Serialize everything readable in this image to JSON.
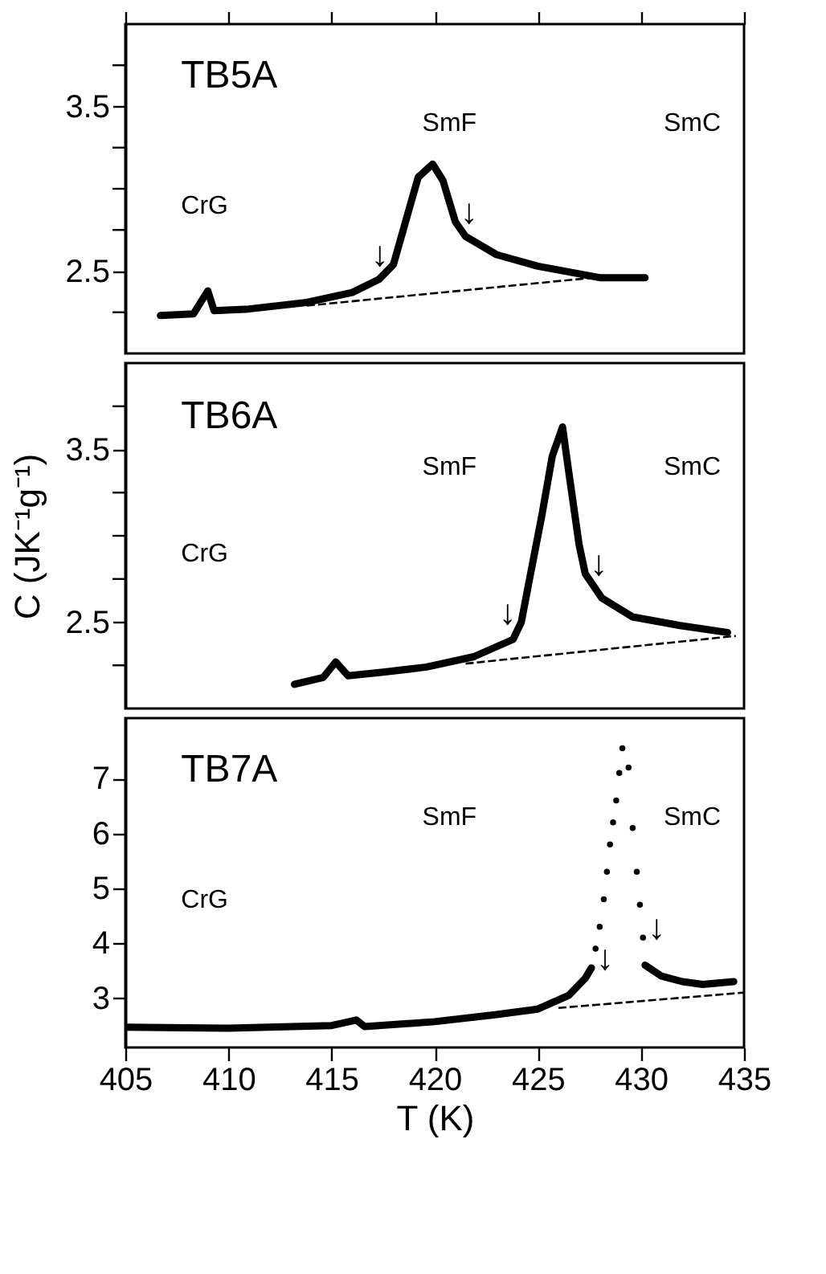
{
  "chart_data": [
    {
      "type": "line",
      "title": "TB5A",
      "xlim": [
        405,
        435
      ],
      "xticks": [
        405,
        410,
        415,
        420,
        425,
        430,
        435
      ],
      "ylim": [
        2.0,
        4.0
      ],
      "yticks": [
        {
          "value": 2.25,
          "label": null
        },
        2.5,
        {
          "value": 2.75,
          "label": null
        },
        {
          "value": 3.0,
          "label": null
        },
        {
          "value": 3.25,
          "label": null
        },
        3.5,
        {
          "value": 3.75,
          "label": null
        }
      ],
      "tick_labels": "y",
      "grid": false,
      "marker": "none",
      "series": [
        {
          "color": "#000000",
          "x": [
            406.7,
            408.3,
            409.0,
            409.3,
            411,
            413.8,
            416,
            417.3,
            418.0,
            418.7,
            419.2,
            419.9,
            420.4,
            421.0,
            421.5,
            423.0,
            425.0,
            428.0,
            430.2
          ],
          "values": [
            2.23,
            2.24,
            2.38,
            2.26,
            2.27,
            2.31,
            2.37,
            2.45,
            2.54,
            2.85,
            3.07,
            3.15,
            3.05,
            2.8,
            2.71,
            2.6,
            2.53,
            2.46,
            2.46
          ]
        },
        {
          "color": "#000000",
          "line_style": "dashed",
          "x": [
            413.8,
            428.5
          ],
          "values": [
            2.29,
            2.47
          ]
        }
      ],
      "annotations": [
        "CrG",
        "SmF",
        "SmC",
        {
          "text": "↓",
          "x": 418.0,
          "y": 2.54
        },
        {
          "text": "↓",
          "x": 421.0,
          "y": 2.8
        }
      ]
    },
    {
      "type": "line",
      "title": "TB6A",
      "ylabel": "C (JK⁻¹g⁻¹)",
      "xlim": [
        405,
        435
      ],
      "ylim": [
        2.0,
        4.0
      ],
      "yticks": [
        {
          "value": 2.25,
          "label": null
        },
        2.5,
        {
          "value": 2.75,
          "label": null
        },
        {
          "value": 3.0,
          "label": null
        },
        {
          "value": 3.25,
          "label": null
        },
        3.5,
        {
          "value": 3.75,
          "label": null
        }
      ],
      "tick_labels": "y",
      "grid": false,
      "marker": "none",
      "series": [
        {
          "color": "#000000",
          "x": [
            413.2,
            414.6,
            415.2,
            415.8,
            417.5,
            419.6,
            421.9,
            423.8,
            424.2,
            424.6,
            425.2,
            425.7,
            426.2,
            426.5,
            427.0,
            427.3,
            428.1,
            429.6,
            431.9,
            434.2
          ],
          "values": [
            2.14,
            2.18,
            2.27,
            2.19,
            2.21,
            2.24,
            2.3,
            2.4,
            2.5,
            2.75,
            3.12,
            3.46,
            3.63,
            3.37,
            2.95,
            2.78,
            2.64,
            2.53,
            2.48,
            2.44
          ]
        },
        {
          "color": "#000000",
          "line_style": "dashed",
          "x": [
            421.5,
            434.6
          ],
          "values": [
            2.26,
            2.42
          ]
        }
      ],
      "annotations": [
        "CrG",
        "SmF",
        "SmC",
        {
          "text": "↓",
          "x": 424.2,
          "y": 2.5
        },
        {
          "text": "↓",
          "x": 427.3,
          "y": 2.78
        }
      ]
    },
    {
      "type": "line",
      "title": "TB7A",
      "xlabel": "T (K)",
      "xlim": [
        405,
        435
      ],
      "xticks": [
        405,
        410,
        415,
        420,
        425,
        430,
        435
      ],
      "ylim": [
        2.1,
        8.1
      ],
      "yticks": [
        3,
        4,
        5,
        6,
        7
      ],
      "grid": false,
      "marker": "none",
      "series": [
        {
          "color": "#000000",
          "x": [
            405.1,
            410,
            415,
            416.2,
            416.6,
            420,
            423,
            425,
            426.5,
            427.3,
            427.6
          ],
          "values": [
            2.47,
            2.45,
            2.5,
            2.6,
            2.48,
            2.57,
            2.7,
            2.8,
            3.05,
            3.36,
            3.55
          ]
        },
        {
          "type": "scatter",
          "color": "#000000",
          "x": [
            427.8,
            428.0,
            428.2,
            428.35,
            428.5,
            428.65,
            428.8,
            428.95,
            429.1,
            429.4,
            429.6,
            429.8,
            429.95,
            430.1
          ],
          "values": [
            3.9,
            4.3,
            4.8,
            5.3,
            5.8,
            6.2,
            6.6,
            7.1,
            7.55,
            7.2,
            6.1,
            5.3,
            4.7,
            4.1
          ]
        },
        {
          "color": "#000000",
          "x": [
            430.2,
            431,
            432,
            433,
            434.5
          ],
          "values": [
            3.6,
            3.4,
            3.3,
            3.25,
            3.3
          ]
        },
        {
          "color": "#000000",
          "line_style": "dashed",
          "x": [
            426.0,
            435.0
          ],
          "values": [
            2.82,
            3.1
          ]
        }
      ],
      "annotations": [
        "CrG",
        "SmF",
        "SmC",
        {
          "text": "↓",
          "x": 427.6,
          "y": 3.55
        },
        {
          "text": "↓",
          "x": 430.1,
          "y": 4.1
        }
      ]
    }
  ]
}
